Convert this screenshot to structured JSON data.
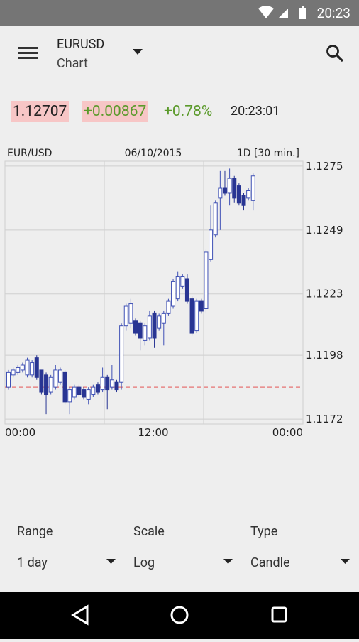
{
  "status_bar": {
    "time": "20:23"
  },
  "toolbar": {
    "title": "EURUSD",
    "subtitle": "Chart"
  },
  "quote": {
    "price": "1.12707",
    "change": "+0.00867",
    "change_pct": "+0.78%",
    "time": "20:23:01"
  },
  "chart": {
    "type": "candlestick",
    "header_left": "EUR/USD",
    "header_center": "06/10/2015",
    "header_right": "1D [30 min.]",
    "x_labels": [
      "00:00",
      "12:00",
      "00:00"
    ],
    "ylim": [
      1.117,
      1.1277
    ],
    "yticks": [
      1.1275,
      1.1249,
      1.1223,
      1.1198,
      1.1172
    ],
    "grid": true,
    "up_color": "#3f51b5",
    "down_color": "#283593",
    "reference_line": 1.1185,
    "reference_color": "#e57373",
    "open": [
      1.1185,
      1.119,
      1.1191,
      1.1192,
      1.119,
      1.119,
      1.1197,
      1.1192,
      1.119,
      1.1183,
      1.1185,
      1.1187,
      1.1191,
      1.1179,
      1.1181,
      1.1185,
      1.1184,
      1.118,
      1.1182,
      1.1186,
      1.1184,
      1.1189,
      1.1185,
      1.1187,
      1.1187,
      1.121,
      1.1211,
      1.1212,
      1.1211,
      1.1204,
      1.1205,
      1.1215,
      1.1209,
      1.1211,
      1.1215,
      1.1218,
      1.1221,
      1.1226,
      1.1229,
      1.1221,
      1.1208,
      1.122,
      1.1217,
      1.1237,
      1.1247,
      1.1262,
      1.1266,
      1.1264,
      1.127,
      1.1267,
      1.1263,
      1.1262,
      1.1261
    ],
    "high": [
      1.1192,
      1.1193,
      1.1194,
      1.1195,
      1.1197,
      1.1196,
      1.1198,
      1.1192,
      1.1191,
      1.119,
      1.1194,
      1.1193,
      1.1192,
      1.1185,
      1.1186,
      1.1186,
      1.1185,
      1.1185,
      1.1186,
      1.1187,
      1.1193,
      1.119,
      1.1194,
      1.1188,
      1.1211,
      1.1219,
      1.1221,
      1.1213,
      1.1212,
      1.1211,
      1.1216,
      1.1216,
      1.1215,
      1.1216,
      1.1221,
      1.1229,
      1.1232,
      1.1231,
      1.1231,
      1.1222,
      1.1221,
      1.1221,
      1.1241,
      1.1259,
      1.1261,
      1.1273,
      1.1273,
      1.1274,
      1.1271,
      1.1268,
      1.1264,
      1.1266,
      1.1272
    ],
    "low": [
      1.1184,
      1.1189,
      1.119,
      1.1191,
      1.1189,
      1.1189,
      1.1188,
      1.1182,
      1.1174,
      1.1182,
      1.1184,
      1.1186,
      1.1178,
      1.1174,
      1.118,
      1.1181,
      1.118,
      1.1178,
      1.1181,
      1.1182,
      1.1183,
      1.1176,
      1.1184,
      1.1183,
      1.1184,
      1.1208,
      1.1209,
      1.1206,
      1.12,
      1.1202,
      1.1204,
      1.1201,
      1.1208,
      1.1202,
      1.1214,
      1.1217,
      1.122,
      1.1225,
      1.1219,
      1.1206,
      1.1207,
      1.1215,
      1.1215,
      1.1236,
      1.1246,
      1.1249,
      1.1263,
      1.1259,
      1.126,
      1.1259,
      1.1257,
      1.1261,
      1.1257
    ],
    "close": [
      1.1191,
      1.1192,
      1.1193,
      1.1194,
      1.1196,
      1.1195,
      1.1189,
      1.1183,
      1.1182,
      1.1189,
      1.1192,
      1.1192,
      1.1179,
      1.1184,
      1.1185,
      1.1182,
      1.1181,
      1.1184,
      1.1185,
      1.1183,
      1.1189,
      1.1184,
      1.1188,
      1.1184,
      1.121,
      1.1218,
      1.1219,
      1.1207,
      1.1205,
      1.121,
      1.1214,
      1.1205,
      1.1214,
      1.1215,
      1.122,
      1.1228,
      1.123,
      1.123,
      1.122,
      1.1207,
      1.122,
      1.1216,
      1.124,
      1.1249,
      1.126,
      1.1266,
      1.1264,
      1.127,
      1.1262,
      1.126,
      1.1259,
      1.1265,
      1.1271
    ]
  },
  "controls": [
    {
      "label": "Range",
      "value": "1 day"
    },
    {
      "label": "Scale",
      "value": "Log"
    },
    {
      "label": "Type",
      "value": "Candle"
    }
  ]
}
